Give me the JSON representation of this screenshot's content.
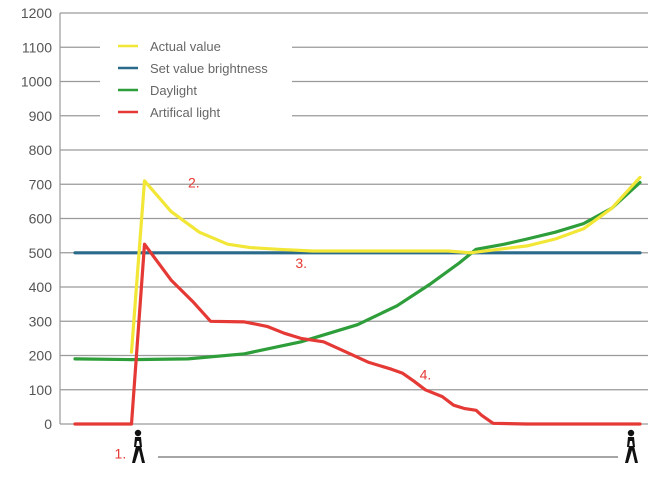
{
  "chart_data": {
    "type": "line",
    "title": "",
    "xlabel": "",
    "ylabel": "",
    "ylim": [
      0,
      1200
    ],
    "xlim": [
      0,
      100
    ],
    "y_ticks": [
      "0",
      "100",
      "200",
      "300",
      "400",
      "500",
      "600",
      "700",
      "800",
      "900",
      "1000",
      "1100",
      "1200"
    ],
    "grid": "horizontal",
    "legend_position": "top-left",
    "series": [
      {
        "name": "Actual value",
        "color": "#f2e637",
        "points": [
          [
            10,
            210
          ],
          [
            12.3,
            710
          ],
          [
            17,
            620
          ],
          [
            22,
            560
          ],
          [
            27,
            525
          ],
          [
            31,
            515
          ],
          [
            36,
            510
          ],
          [
            42,
            505
          ],
          [
            48,
            505
          ],
          [
            54,
            505
          ],
          [
            60,
            505
          ],
          [
            66,
            505
          ],
          [
            70,
            500
          ],
          [
            75,
            510
          ],
          [
            80,
            520
          ],
          [
            85,
            540
          ],
          [
            90,
            570
          ],
          [
            95,
            630
          ],
          [
            100,
            720
          ]
        ]
      },
      {
        "name": "Set value brightness",
        "color": "#2a6a8a",
        "points": [
          [
            0,
            500
          ],
          [
            100,
            500
          ]
        ]
      },
      {
        "name": "Daylight",
        "color": "#2e9e3a",
        "points": [
          [
            0,
            190
          ],
          [
            10,
            188
          ],
          [
            20,
            190
          ],
          [
            30,
            205
          ],
          [
            40,
            240
          ],
          [
            50,
            290
          ],
          [
            57,
            345
          ],
          [
            63,
            410
          ],
          [
            68,
            470
          ],
          [
            71,
            510
          ],
          [
            76,
            525
          ],
          [
            80,
            540
          ],
          [
            85,
            560
          ],
          [
            90,
            585
          ],
          [
            95,
            630
          ],
          [
            100,
            705
          ]
        ]
      },
      {
        "name": "Artifical light",
        "color": "#e53935",
        "points": [
          [
            0,
            0
          ],
          [
            10,
            0
          ],
          [
            12.3,
            525
          ],
          [
            17,
            420
          ],
          [
            21,
            355
          ],
          [
            24,
            300
          ],
          [
            30,
            298
          ],
          [
            34,
            285
          ],
          [
            37,
            265
          ],
          [
            40,
            250
          ],
          [
            44,
            240
          ],
          [
            48,
            210
          ],
          [
            52,
            180
          ],
          [
            56,
            160
          ],
          [
            58,
            148
          ],
          [
            60,
            125
          ],
          [
            62,
            100
          ],
          [
            65,
            80
          ],
          [
            67,
            55
          ],
          [
            69,
            45
          ],
          [
            71,
            40
          ],
          [
            72,
            25
          ],
          [
            74,
            2
          ],
          [
            80,
            0
          ],
          [
            100,
            0
          ]
        ]
      }
    ],
    "annotations": [
      {
        "text": "1.",
        "x": 7,
        "y": -100
      },
      {
        "text": "2.",
        "x": 20,
        "y": 690
      },
      {
        "text": "3.",
        "x": 39,
        "y": 455
      },
      {
        "text": "4.",
        "x": 61,
        "y": 130
      }
    ]
  }
}
